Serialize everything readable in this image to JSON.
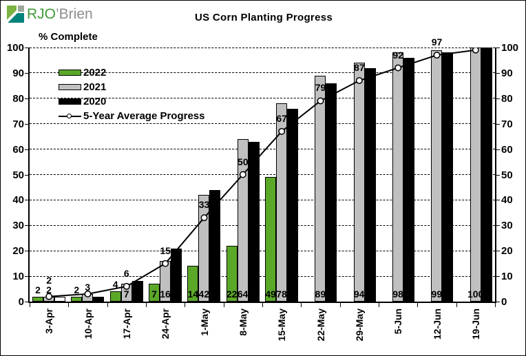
{
  "logo": {
    "brand_primary": "RJO",
    "brand_secondary": "’Brien"
  },
  "header": {
    "title": "US Corn Planting Progress",
    "y_axis_title": "% Complete"
  },
  "legend": {
    "items": [
      {
        "label": "2022",
        "swatch": "bar",
        "color": "#5ba829"
      },
      {
        "label": "2021",
        "swatch": "bar",
        "color": "#c0c0c0"
      },
      {
        "label": "2020",
        "swatch": "bar",
        "color": "#000000"
      },
      {
        "label": "5-Year Average Progress",
        "swatch": "line-marker",
        "color": "#000000"
      }
    ]
  },
  "chart_data": {
    "type": "bar+line",
    "title": "US Corn Planting Progress",
    "xlabel": "",
    "ylabel": "% Complete",
    "ylim": [
      0,
      100
    ],
    "ytick_step": 10,
    "grid": "dashed-horizontal",
    "legend_position": "upper-left-inside",
    "categories": [
      "3-Apr",
      "10-Apr",
      "17-Apr",
      "24-Apr",
      "1-May",
      "8-May",
      "15-May",
      "22-May",
      "29-May",
      "5-Jun",
      "12-Jun",
      "19-Jun"
    ],
    "series": [
      {
        "name": "2022",
        "type": "bar",
        "color": "#5ba829",
        "values": [
          2,
          2,
          4,
          7,
          14,
          22,
          49,
          null,
          null,
          null,
          null,
          null
        ]
      },
      {
        "name": "2021",
        "type": "bar",
        "color": "#c0c0c0",
        "values": [
          2,
          3,
          7,
          16,
          42,
          64,
          78,
          89,
          94,
          98,
          99,
          100
        ]
      },
      {
        "name": "2020",
        "type": "bar",
        "color": "#000000",
        "values": [
          2,
          2,
          8,
          21,
          44,
          63,
          76,
          86,
          92,
          96,
          98,
          100
        ],
        "point_fill_overrides": {
          "0": "#ffffff"
        }
      },
      {
        "name": "5-Year Average Progress",
        "type": "line",
        "color": "#000000",
        "marker": "open-circle",
        "values": [
          2,
          3,
          6,
          15,
          33,
          50,
          67,
          79,
          87,
          92,
          97,
          99
        ]
      }
    ],
    "data_labels": {
      "s2022": [
        "2",
        "2",
        "4",
        "7",
        "14",
        "22",
        "49",
        "",
        "",
        "",
        "",
        ""
      ],
      "s2021": [
        "2",
        "3",
        "7",
        "16",
        "42",
        "64",
        "78",
        "89",
        "94",
        "98",
        "99",
        "100"
      ],
      "avg": [
        "2",
        "",
        "6",
        "15",
        "33",
        "50",
        "67",
        "79",
        "87",
        "92",
        "97",
        ""
      ]
    },
    "axis": {
      "y_ticks": [
        "0",
        "10",
        "20",
        "30",
        "40",
        "50",
        "60",
        "70",
        "80",
        "90",
        "100"
      ],
      "y_axis_sides": "both"
    }
  }
}
